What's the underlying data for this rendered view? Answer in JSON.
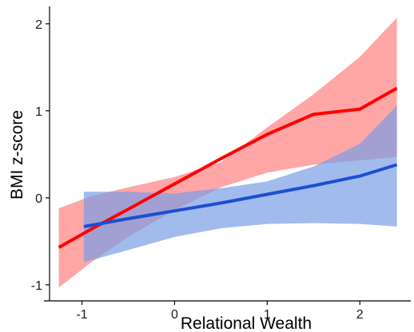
{
  "chart_data": {
    "type": "line",
    "title": "",
    "xlabel": "Relational Wealth",
    "ylabel": "BMI z-score",
    "xlim": [
      -1.35,
      2.55
    ],
    "ylim": [
      -1.12,
      2.2
    ],
    "x_ticks": [
      -1,
      0,
      1,
      2
    ],
    "y_ticks": [
      -1,
      0,
      1,
      2
    ],
    "grid": false,
    "legend": "none",
    "series": [
      {
        "color": "#ff0000",
        "band_color": "#ff8080",
        "x": [
          -1.25,
          -0.9,
          -0.5,
          0.0,
          0.5,
          1.0,
          1.5,
          2.0,
          2.4
        ],
        "y": [
          -0.57,
          -0.36,
          -0.13,
          0.16,
          0.45,
          0.73,
          0.96,
          1.02,
          1.26
        ],
        "lower": [
          -1.03,
          -0.74,
          -0.45,
          -0.14,
          0.12,
          0.29,
          0.38,
          0.43,
          0.47
        ],
        "upper": [
          -0.12,
          0.02,
          0.12,
          0.24,
          0.41,
          0.81,
          1.19,
          1.62,
          2.07
        ]
      },
      {
        "color": "#1a4fd1",
        "band_color": "#7a9ee6",
        "x": [
          -0.98,
          -0.5,
          0.0,
          0.5,
          1.0,
          1.5,
          2.0,
          2.4
        ],
        "y": [
          -0.33,
          -0.24,
          -0.15,
          -0.06,
          0.04,
          0.14,
          0.25,
          0.38
        ],
        "lower": [
          -0.74,
          -0.6,
          -0.45,
          -0.35,
          -0.3,
          -0.29,
          -0.3,
          -0.33
        ],
        "upper": [
          0.07,
          0.07,
          0.05,
          0.11,
          0.19,
          0.36,
          0.62,
          1.06
        ]
      }
    ]
  }
}
